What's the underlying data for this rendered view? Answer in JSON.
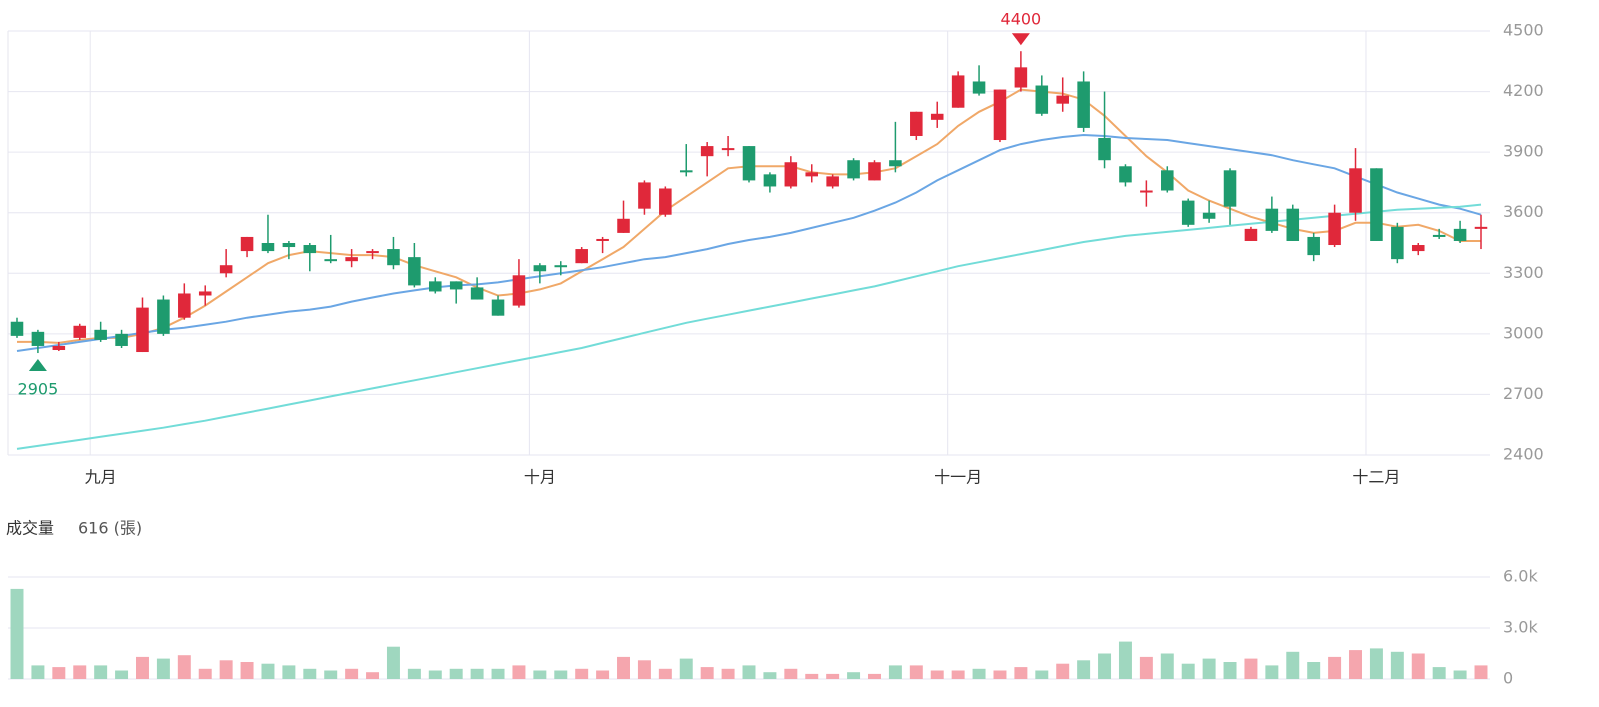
{
  "chart_data": [
    {
      "type": "candlestick",
      "categories": [
        null,
        null,
        null,
        null,
        "九月",
        null,
        null,
        null,
        null,
        null,
        null,
        null,
        null,
        null,
        null,
        null,
        null,
        null,
        null,
        null,
        null,
        null,
        null,
        null,
        null,
        "十月",
        null,
        null,
        null,
        null,
        null,
        null,
        null,
        null,
        null,
        null,
        null,
        null,
        null,
        null,
        null,
        null,
        null,
        null,
        null,
        "十一月",
        null,
        null,
        null,
        null,
        null,
        null,
        null,
        null,
        null,
        null,
        null,
        null,
        null,
        null,
        null,
        null,
        null,
        null,
        null,
        "十二月",
        null,
        null,
        null,
        null,
        null
      ],
      "open": [
        3060,
        3010,
        2920,
        2980,
        3020,
        3000,
        2910,
        3170,
        3080,
        3190,
        3300,
        3410,
        3450,
        3450,
        3440,
        3370,
        3360,
        3400,
        3420,
        3380,
        3260,
        3260,
        3230,
        3170,
        3140,
        3340,
        3340,
        3350,
        3460,
        3500,
        3620,
        3590,
        3810,
        3880,
        3910,
        3930,
        3790,
        3730,
        3780,
        3730,
        3860,
        3760,
        3860,
        3980,
        4060,
        4120,
        4250,
        3960,
        4220,
        4230,
        4140,
        4250,
        3970,
        3830,
        3700,
        3810,
        3660,
        3600,
        3810,
        3460,
        3620,
        3620,
        3480,
        3440,
        3600,
        3820,
        3530,
        3410,
        3490,
        3520,
        3520
      ],
      "high": [
        3080,
        3020,
        2960,
        3050,
        3060,
        3020,
        3180,
        3190,
        3250,
        3240,
        3420,
        3480,
        3590,
        3460,
        3450,
        3490,
        3420,
        3420,
        3480,
        3450,
        3280,
        3260,
        3280,
        3190,
        3370,
        3350,
        3360,
        3430,
        3480,
        3660,
        3760,
        3730,
        3940,
        3950,
        3980,
        3930,
        3800,
        3880,
        3840,
        3790,
        3870,
        3860,
        4050,
        4100,
        4150,
        4300,
        4330,
        4210,
        4400,
        4280,
        4270,
        4300,
        4200,
        3840,
        3760,
        3830,
        3670,
        3660,
        3820,
        3530,
        3680,
        3640,
        3500,
        3640,
        3920,
        3820,
        3550,
        3450,
        3520,
        3560,
        3590
      ],
      "low": [
        2980,
        2905,
        2915,
        2970,
        2960,
        2930,
        2910,
        2990,
        3070,
        3140,
        3280,
        3380,
        3400,
        3370,
        3310,
        3350,
        3330,
        3370,
        3320,
        3230,
        3200,
        3150,
        3170,
        3090,
        3130,
        3250,
        3290,
        3350,
        3400,
        3500,
        3590,
        3580,
        3780,
        3780,
        3880,
        3750,
        3700,
        3720,
        3750,
        3720,
        3760,
        3760,
        3800,
        3960,
        4020,
        4120,
        4180,
        3950,
        4200,
        4080,
        4100,
        4000,
        3820,
        3730,
        3630,
        3700,
        3530,
        3550,
        3540,
        3460,
        3500,
        3460,
        3360,
        3430,
        3560,
        3460,
        3350,
        3390,
        3470,
        3450,
        3420
      ],
      "close": [
        2990,
        2940,
        2940,
        3040,
        2970,
        2940,
        3130,
        3000,
        3200,
        3210,
        3340,
        3480,
        3410,
        3430,
        3400,
        3360,
        3380,
        3410,
        3340,
        3240,
        3210,
        3220,
        3170,
        3090,
        3290,
        3310,
        3330,
        3420,
        3470,
        3570,
        3750,
        3720,
        3800,
        3930,
        3920,
        3760,
        3730,
        3850,
        3800,
        3780,
        3770,
        3850,
        3830,
        4100,
        4090,
        4280,
        4190,
        4210,
        4320,
        4090,
        4180,
        4020,
        3860,
        3750,
        3710,
        3710,
        3540,
        3570,
        3630,
        3520,
        3510,
        3460,
        3390,
        3600,
        3820,
        3460,
        3370,
        3440,
        3480,
        3460,
        3530
      ],
      "lines": [
        {
          "color": "#f0a868",
          "values": [
            2960,
            2960,
            2955,
            2970,
            2980,
            2980,
            3000,
            3030,
            3080,
            3140,
            3210,
            3280,
            3350,
            3390,
            3410,
            3400,
            3390,
            3390,
            3380,
            3340,
            3310,
            3280,
            3230,
            3190,
            3200,
            3220,
            3250,
            3310,
            3370,
            3430,
            3520,
            3610,
            3680,
            3750,
            3820,
            3830,
            3830,
            3830,
            3800,
            3790,
            3790,
            3800,
            3820,
            3880,
            3940,
            4030,
            4100,
            4150,
            4210,
            4200,
            4190,
            4160,
            4080,
            3980,
            3880,
            3800,
            3710,
            3660,
            3620,
            3580,
            3550,
            3520,
            3500,
            3510,
            3550,
            3550,
            3530,
            3540,
            3510,
            3460,
            3460
          ]
        },
        {
          "color": "#6aa6e4",
          "values": [
            2915,
            2930,
            2945,
            2960,
            2975,
            2990,
            3005,
            3020,
            3030,
            3045,
            3060,
            3080,
            3095,
            3110,
            3120,
            3135,
            3160,
            3180,
            3200,
            3215,
            3230,
            3240,
            3245,
            3255,
            3270,
            3285,
            3300,
            3315,
            3330,
            3350,
            3370,
            3380,
            3400,
            3420,
            3445,
            3465,
            3480,
            3500,
            3525,
            3550,
            3575,
            3610,
            3650,
            3700,
            3760,
            3810,
            3860,
            3910,
            3940,
            3960,
            3975,
            3985,
            3980,
            3970,
            3965,
            3960,
            3945,
            3930,
            3915,
            3900,
            3885,
            3860,
            3840,
            3820,
            3780,
            3740,
            3700,
            3670,
            3640,
            3620,
            3590
          ]
        },
        {
          "color": "#72dcd8",
          "values": [
            2430,
            2445,
            2460,
            2475,
            2490,
            2505,
            2520,
            2535,
            2553,
            2570,
            2590,
            2610,
            2630,
            2650,
            2670,
            2690,
            2710,
            2730,
            2750,
            2770,
            2790,
            2810,
            2830,
            2850,
            2870,
            2890,
            2910,
            2930,
            2955,
            2980,
            3005,
            3030,
            3055,
            3075,
            3095,
            3115,
            3135,
            3155,
            3175,
            3195,
            3215,
            3235,
            3260,
            3285,
            3310,
            3335,
            3355,
            3375,
            3395,
            3415,
            3435,
            3455,
            3470,
            3485,
            3495,
            3505,
            3515,
            3525,
            3535,
            3545,
            3555,
            3565,
            3575,
            3585,
            3595,
            3605,
            3615,
            3620,
            3625,
            3630,
            3640
          ]
        }
      ],
      "up_color": "#e0283a",
      "down_color": "#1e9b6e",
      "ylim": [
        2400,
        4500
      ],
      "yticks": [
        2400,
        2700,
        3000,
        3300,
        3600,
        3900,
        4200,
        4500
      ],
      "grid": true
    },
    {
      "type": "bar",
      "label": "成交量",
      "readout": "616 (張)",
      "values": [
        5300,
        800,
        700,
        800,
        800,
        500,
        1300,
        1200,
        1400,
        600,
        1100,
        1000,
        900,
        800,
        600,
        500,
        600,
        400,
        1900,
        600,
        500,
        600,
        600,
        600,
        800,
        500,
        500,
        600,
        500,
        1300,
        1100,
        600,
        1200,
        700,
        600,
        800,
        400,
        600,
        300,
        300,
        400,
        300,
        800,
        800,
        500,
        500,
        600,
        500,
        700,
        500,
        900,
        1100,
        1500,
        2200,
        1300,
        1500,
        900,
        1200,
        1000,
        1200,
        800,
        1600,
        1000,
        1300,
        1700,
        1800,
        1600,
        1500,
        700,
        500,
        800
      ],
      "up_color": "#f5a6ae",
      "down_color": "#9fd7bf",
      "ylim": [
        0,
        6000
      ],
      "yticks": [
        0,
        {
          "value": 3000,
          "label": "3.0k"
        },
        {
          "value": 6000,
          "label": "6.0k"
        }
      ],
      "grid": true
    }
  ]
}
